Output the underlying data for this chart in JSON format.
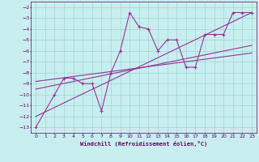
{
  "xlabel": "Windchill (Refroidissement éolien,°C)",
  "xlim": [
    -0.5,
    23.5
  ],
  "ylim": [
    -13.5,
    -1.5
  ],
  "xticks": [
    0,
    1,
    2,
    3,
    4,
    5,
    6,
    7,
    8,
    9,
    10,
    11,
    12,
    13,
    14,
    15,
    16,
    17,
    18,
    19,
    20,
    21,
    22,
    23
  ],
  "yticks": [
    -13,
    -12,
    -11,
    -10,
    -9,
    -8,
    -7,
    -6,
    -5,
    -4,
    -3,
    -2
  ],
  "bg_color": "#c8eef0",
  "grid_color": "#a0d8d0",
  "line_color": "#993399",
  "scatter_x": [
    0,
    2,
    3,
    4,
    5,
    6,
    7,
    8,
    9,
    10,
    11,
    12,
    13,
    14,
    15,
    16,
    17,
    18,
    19,
    20,
    21,
    22,
    23
  ],
  "scatter_y": [
    -13,
    -10,
    -8.5,
    -8.5,
    -9,
    -9,
    -11.5,
    -8,
    -6,
    -2.5,
    -3.8,
    -4,
    -6,
    -5,
    -5,
    -7.5,
    -7.5,
    -4.5,
    -4.5,
    -4.5,
    -2.5,
    -2.5,
    -2.5
  ],
  "line1_x": [
    0,
    23
  ],
  "line1_y": [
    -12.0,
    -2.5
  ],
  "line2_x": [
    0,
    23
  ],
  "line2_y": [
    -9.5,
    -5.5
  ],
  "line3_x": [
    0,
    23
  ],
  "line3_y": [
    -8.8,
    -6.2
  ]
}
